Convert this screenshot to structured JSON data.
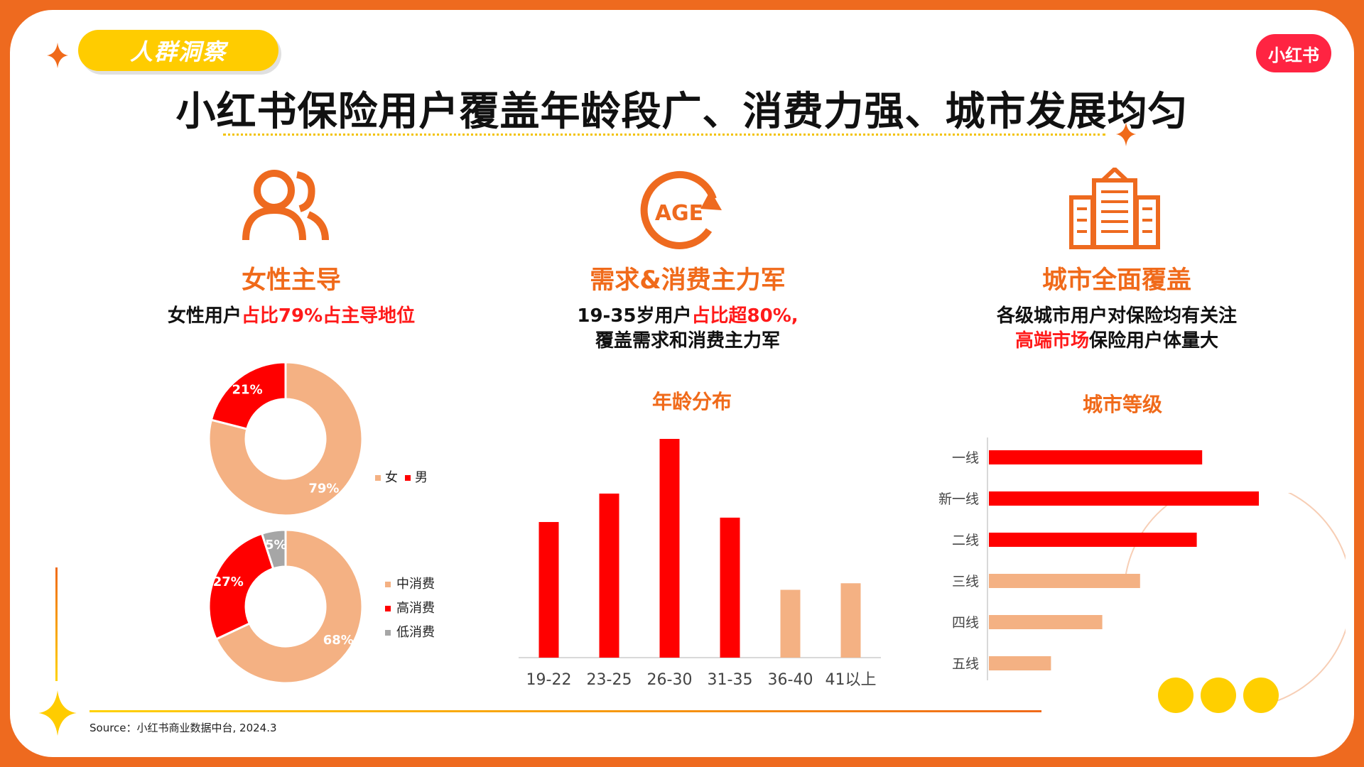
{
  "header": {
    "tag": "人群洞察",
    "logo": "小红书",
    "title": "小红书保险用户覆盖年龄段广、消费力强、城市发展均匀"
  },
  "columns": [
    {
      "icon": "people-icon",
      "title": "女性主导",
      "desc_pre": "女性用户",
      "desc_hl": "占比79%占主导地位"
    },
    {
      "icon": "age-cycle-icon",
      "icon_text": "AGE",
      "title": "需求&消费主力军",
      "desc_pre": "19-35岁用户",
      "desc_hl": "占比超80%,",
      "desc_line2": "覆盖需求和消费主力军"
    },
    {
      "icon": "building-icon",
      "title": "城市全面覆盖",
      "desc_line1": "各级城市用户对保险均有关注",
      "desc_hl": "高端市场",
      "desc_post": "保险用户体量大"
    }
  ],
  "chart_data": [
    {
      "type": "pie",
      "title": "",
      "labels": [
        "女",
        "男"
      ],
      "values": [
        79,
        21
      ],
      "value_labels": [
        "79%",
        "21%"
      ],
      "colors": [
        "#f4b183",
        "#ff0000"
      ],
      "legend": "right"
    },
    {
      "type": "pie",
      "title": "",
      "labels": [
        "中消费",
        "高消费",
        "低消费"
      ],
      "values": [
        68,
        27,
        5
      ],
      "value_labels": [
        "68%",
        "27%",
        "5%"
      ],
      "colors": [
        "#f4b183",
        "#ff0000",
        "#a6a6a6"
      ],
      "legend": "right"
    },
    {
      "type": "bar",
      "title": "年龄分布",
      "categories": [
        "19-22",
        "23-25",
        "26-30",
        "31-35",
        "36-40",
        "41以上"
      ],
      "values": [
        62,
        75,
        100,
        64,
        31,
        34
      ],
      "colors": [
        "#ff0000",
        "#ff0000",
        "#ff0000",
        "#ff0000",
        "#f4b183",
        "#f4b183"
      ],
      "ylim": [
        0,
        100
      ],
      "xlabel": "",
      "ylabel": ""
    },
    {
      "type": "bar",
      "orientation": "horizontal",
      "title": "城市等级",
      "categories": [
        "一线",
        "新一线",
        "二线",
        "三线",
        "四线",
        "五线"
      ],
      "values": [
        79,
        100,
        77,
        56,
        42,
        23
      ],
      "colors": [
        "#ff0000",
        "#ff0000",
        "#ff0000",
        "#f4b183",
        "#f4b183",
        "#f4b183"
      ],
      "xlim": [
        0,
        100
      ]
    }
  ],
  "source": "Source：小红书商业数据中台, 2024.3"
}
